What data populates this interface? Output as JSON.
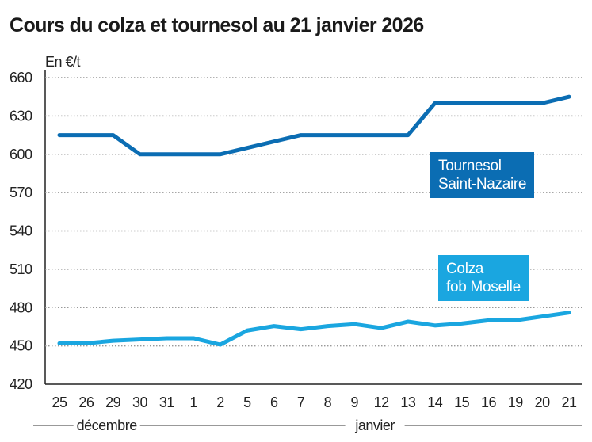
{
  "chart_data": {
    "type": "line",
    "title": "Cours du colza et tournesol au 21 janvier 2026",
    "ylabel": "En €/t",
    "ylim": [
      420,
      660
    ],
    "yticks": [
      420,
      450,
      480,
      510,
      540,
      570,
      600,
      630,
      660
    ],
    "grid": true,
    "categories": [
      "25",
      "26",
      "29",
      "30",
      "31",
      "1",
      "2",
      "5",
      "6",
      "7",
      "8",
      "9",
      "12",
      "13",
      "14",
      "15",
      "16",
      "19",
      "20",
      "21"
    ],
    "months": [
      {
        "label": "décembre",
        "from": 0,
        "to": 4
      },
      {
        "label": "janvier",
        "from": 5,
        "to": 19
      }
    ],
    "series": [
      {
        "name": "Tournesol Saint-Nazaire",
        "label_lines": [
          "Tournesol",
          "Saint-Nazaire"
        ],
        "color": "#0b6db3",
        "values": [
          615,
          615,
          615,
          600,
          600,
          600,
          600,
          605,
          610,
          615,
          615,
          615,
          615,
          615,
          640,
          640,
          640,
          640,
          640,
          645
        ]
      },
      {
        "name": "Colza fob Moselle",
        "label_lines": [
          "Colza",
          "fob Moselle"
        ],
        "color": "#1aa6e0",
        "values": [
          452,
          452,
          454,
          455,
          456,
          456,
          451,
          462,
          465.5,
          463,
          465.5,
          467,
          464,
          469,
          466,
          467.5,
          470,
          470,
          473,
          476
        ]
      }
    ]
  }
}
